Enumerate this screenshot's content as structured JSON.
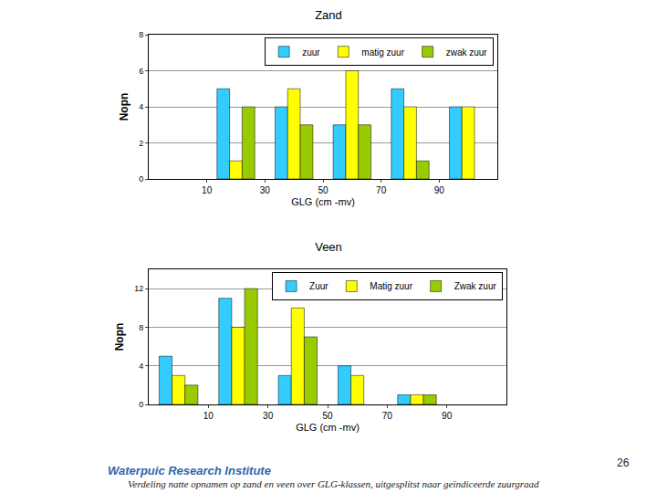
{
  "chart_data": [
    {
      "type": "bar",
      "title": "Zand",
      "x_label": "GLG (cm -mv)",
      "y_label": "Nopn",
      "x": [
        0,
        20,
        40,
        60,
        80,
        100
      ],
      "series": [
        {
          "name": "zuur",
          "color": "#33ccff",
          "values": [
            null,
            5,
            4,
            3,
            5,
            4
          ]
        },
        {
          "name": "matig zuur",
          "color": "#ffff00",
          "values": [
            null,
            1,
            5,
            6,
            4,
            4
          ]
        },
        {
          "name": "zwak zuur",
          "color": "#99cc00",
          "values": [
            null,
            4,
            3,
            3,
            1,
            null
          ]
        }
      ],
      "xlim": [
        -10,
        110
      ],
      "xticks": [
        10,
        30,
        50,
        70,
        90
      ],
      "ylim": [
        0,
        8
      ],
      "yticks": [
        0,
        2,
        4,
        6,
        8
      ],
      "grid": true,
      "legend": "top right"
    },
    {
      "type": "bar",
      "title": "Veen",
      "x_label": "GLG (cm -mv)",
      "y_label": "Nopn",
      "x": [
        0,
        20,
        40,
        60,
        80,
        100
      ],
      "series": [
        {
          "name": "Zuur",
          "color": "#33ccff",
          "values": [
            5,
            11,
            3,
            4,
            1,
            null
          ]
        },
        {
          "name": "Matig zuur",
          "color": "#ffff00",
          "values": [
            3,
            8,
            10,
            3,
            1,
            null
          ]
        },
        {
          "name": "Zwak zuur",
          "color": "#99cc00",
          "values": [
            2,
            12,
            7,
            null,
            1,
            null
          ]
        }
      ],
      "xlim": [
        -10,
        110
      ],
      "xticks": [
        10,
        30,
        50,
        70,
        90
      ],
      "ylim": [
        0,
        14
      ],
      "yticks": [
        0,
        4,
        8,
        12
      ],
      "grid": true,
      "legend": "top right"
    }
  ],
  "footer": {
    "institute": "Waterpuic Research Institute",
    "caption": "Verdeling natte opnamen op zand en veen over GLG-klassen, uitgesplitst naar geïndiceerde zuurgraad",
    "page": 26
  }
}
